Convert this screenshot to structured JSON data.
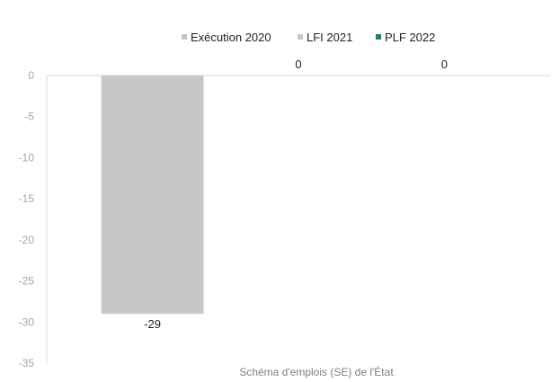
{
  "chart_data": {
    "type": "bar",
    "categories": [
      "Schéma d'emplois (SE) de l'État"
    ],
    "series": [
      {
        "name": "Exécution 2020",
        "values": [
          -29
        ],
        "color": "#c7c7c7",
        "data_labels": [
          "-29"
        ]
      },
      {
        "name": "LFI 2021",
        "values": [
          0
        ],
        "color": "#c7c7c7",
        "data_labels": [
          "0"
        ]
      },
      {
        "name": "PLF 2022",
        "values": [
          0
        ],
        "color": "#2e7d55",
        "data_labels": [
          "0"
        ]
      }
    ],
    "title": "",
    "xlabel": "Schéma d'emplois (SE) de l'État",
    "ylabel": "",
    "ylim": [
      -35,
      0
    ],
    "yticks": [
      "0",
      "-5",
      "-10",
      "-15",
      "-20",
      "-25",
      "-30",
      "-35"
    ],
    "grid": false,
    "legend_position": "top-center"
  },
  "colors": {
    "axis": "#d9d9d9",
    "text": "#222222",
    "tick_text": "#a6a6a6"
  }
}
